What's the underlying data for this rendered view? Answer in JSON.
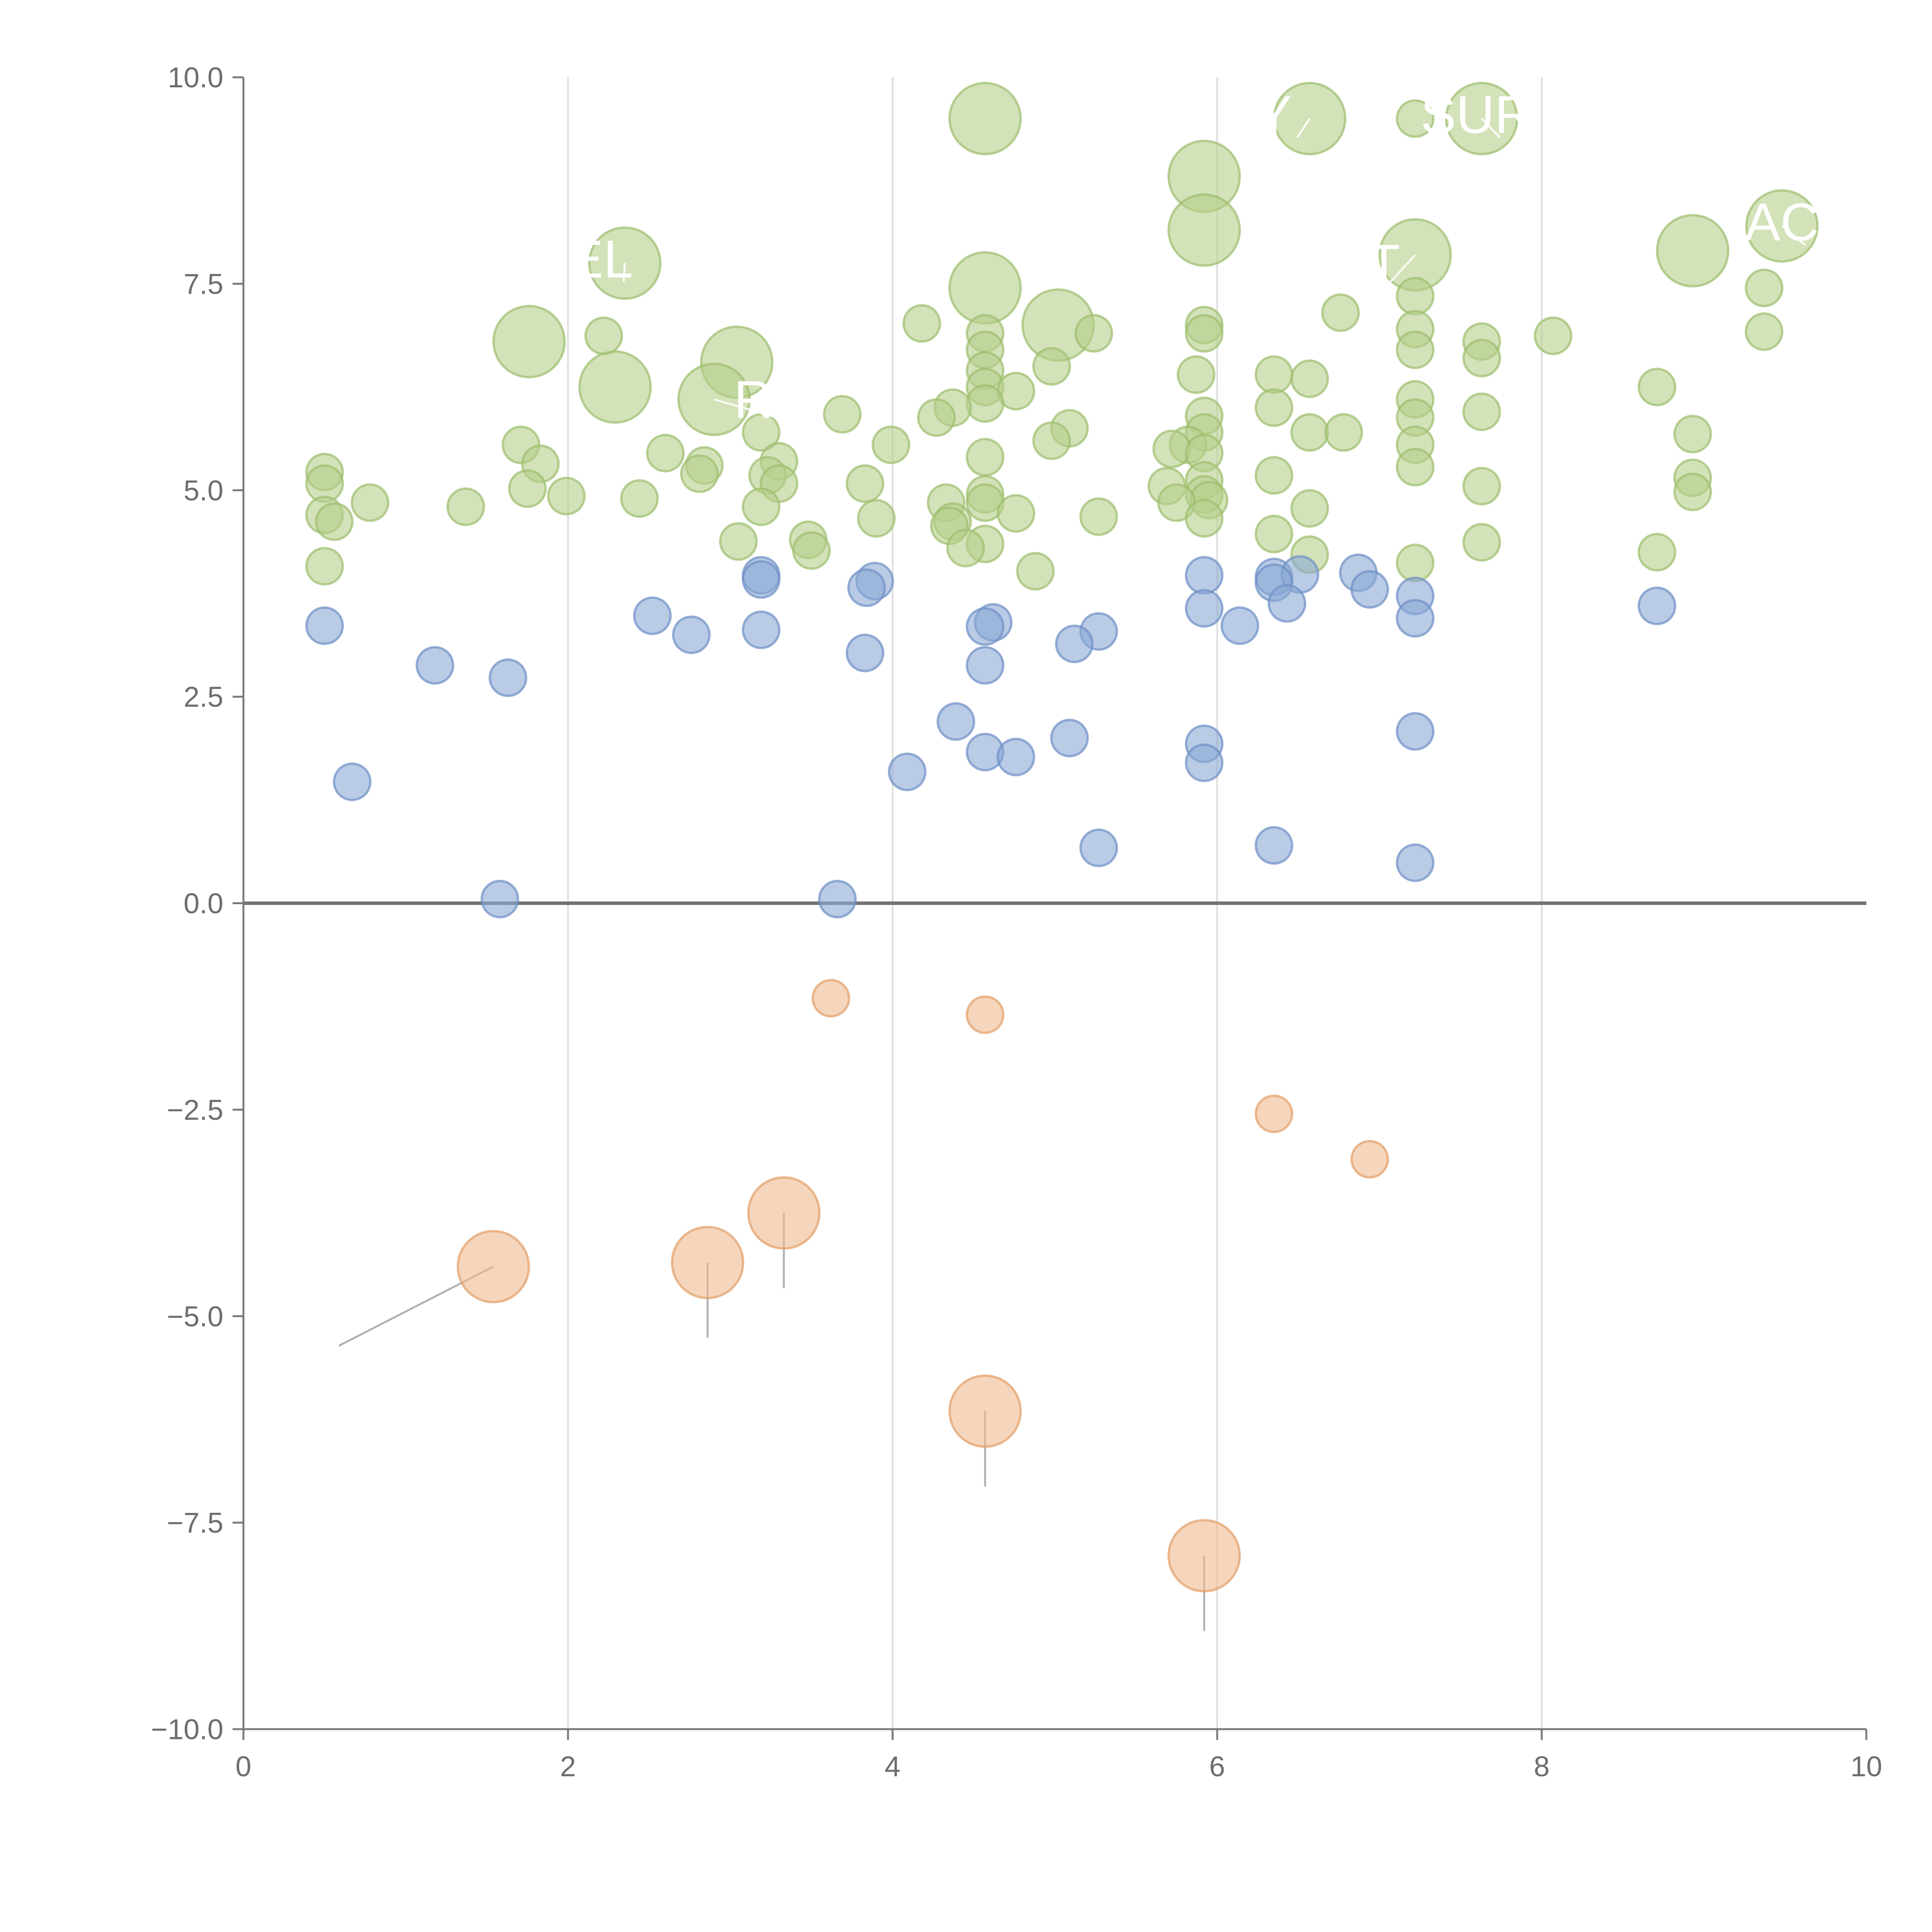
{
  "chart_data": {
    "type": "scatter",
    "title": "",
    "xlabel": "",
    "ylabel": "",
    "xlim": [
      0,
      10
    ],
    "ylim": [
      -10,
      10
    ],
    "x_ticks": [
      0,
      2,
      4,
      6,
      8,
      10
    ],
    "y_ticks": [
      -10.0,
      -7.5,
      -5.0,
      -2.5,
      0.0,
      2.5,
      5.0,
      7.5,
      10.0
    ],
    "x_tick_labels": [
      "0",
      "2",
      "4",
      "6",
      "8",
      "10"
    ],
    "y_tick_labels": [
      "−10.0",
      "−7.5",
      "−5.0",
      "−2.5",
      "0.0",
      "2.5",
      "5.0",
      "7.5",
      "10.0"
    ],
    "x_gridlines": [
      2,
      4,
      6,
      8
    ],
    "reference_line_y": 0,
    "legend": "none",
    "colors": {
      "green_fill": "#b5cf8a",
      "green_stroke": "#9dbd6c",
      "blue_fill": "#8aa8d4",
      "blue_stroke": "#6d8fc6",
      "orange_fill": "#eeb98f",
      "orange_stroke": "#e39e66",
      "leader_line": "#b0b0b0",
      "label_text": "#ffffff"
    },
    "series": [
      {
        "name": "green",
        "points": [
          [
            4.57,
            9.5,
            3
          ],
          [
            6.57,
            9.5,
            3
          ],
          [
            7.22,
            9.5,
            1
          ],
          [
            7.63,
            9.5,
            3
          ],
          [
            5.92,
            8.8,
            3
          ],
          [
            5.92,
            8.15,
            3
          ],
          [
            9.48,
            8.2,
            3
          ],
          [
            8.93,
            7.9,
            3
          ],
          [
            7.22,
            7.85,
            3
          ],
          [
            2.35,
            7.75,
            3
          ],
          [
            4.57,
            7.45,
            3
          ],
          [
            5.02,
            7.0,
            3
          ],
          [
            1.76,
            6.8,
            3
          ],
          [
            3.04,
            6.55,
            3
          ],
          [
            2.29,
            6.25,
            3
          ],
          [
            2.9,
            6.1,
            3
          ],
          [
            7.22,
            7.35,
            1
          ],
          [
            9.37,
            7.45,
            1
          ],
          [
            6.76,
            7.15,
            1
          ],
          [
            4.18,
            7.02,
            1
          ],
          [
            5.92,
            7.0,
            1
          ],
          [
            5.92,
            6.9,
            1
          ],
          [
            7.22,
            6.95,
            1
          ],
          [
            9.37,
            6.92,
            1
          ],
          [
            4.57,
            6.9,
            1
          ],
          [
            5.24,
            6.9,
            1
          ],
          [
            8.07,
            6.87,
            1
          ],
          [
            2.22,
            6.87,
            1
          ],
          [
            7.63,
            6.8,
            1
          ],
          [
            4.57,
            6.7,
            1
          ],
          [
            7.22,
            6.7,
            1
          ],
          [
            7.63,
            6.6,
            1
          ],
          [
            4.57,
            6.45,
            1
          ],
          [
            4.98,
            6.5,
            1
          ],
          [
            5.87,
            6.4,
            1
          ],
          [
            6.35,
            6.4,
            1
          ],
          [
            6.57,
            6.35,
            1
          ],
          [
            4.57,
            6.25,
            1
          ],
          [
            4.76,
            6.2,
            1
          ],
          [
            8.71,
            6.25,
            1
          ],
          [
            7.22,
            6.1,
            1
          ],
          [
            3.69,
            5.92,
            1
          ],
          [
            4.57,
            6.05,
            1
          ],
          [
            4.37,
            6.0,
            1
          ],
          [
            6.35,
            6.0,
            1
          ],
          [
            7.63,
            5.95,
            1
          ],
          [
            5.92,
            5.9,
            1
          ],
          [
            7.22,
            5.88,
            1
          ],
          [
            4.27,
            5.88,
            1
          ],
          [
            5.09,
            5.75,
            1
          ],
          [
            3.19,
            5.7,
            1
          ],
          [
            6.57,
            5.7,
            1
          ],
          [
            6.78,
            5.7,
            1
          ],
          [
            8.93,
            5.68,
            1
          ],
          [
            5.92,
            5.7,
            1
          ],
          [
            4.98,
            5.6,
            1
          ],
          [
            3.99,
            5.55,
            1
          ],
          [
            1.71,
            5.55,
            1
          ],
          [
            7.22,
            5.55,
            1
          ],
          [
            5.82,
            5.55,
            1
          ],
          [
            5.72,
            5.5,
            1
          ],
          [
            2.6,
            5.45,
            1
          ],
          [
            5.92,
            5.45,
            1
          ],
          [
            4.57,
            5.4,
            1
          ],
          [
            3.3,
            5.35,
            1
          ],
          [
            1.83,
            5.32,
            1
          ],
          [
            2.84,
            5.3,
            1
          ],
          [
            7.22,
            5.28,
            1
          ],
          [
            0.5,
            5.22,
            1
          ],
          [
            2.81,
            5.2,
            1
          ],
          [
            6.35,
            5.18,
            1
          ],
          [
            3.23,
            5.18,
            1
          ],
          [
            8.93,
            5.15,
            1
          ],
          [
            5.92,
            5.12,
            1
          ],
          [
            0.5,
            5.08,
            1
          ],
          [
            3.83,
            5.08,
            1
          ],
          [
            3.3,
            5.08,
            1
          ],
          [
            5.69,
            5.05,
            1
          ],
          [
            7.63,
            5.05,
            1
          ],
          [
            1.75,
            5.02,
            1
          ],
          [
            8.93,
            4.98,
            1
          ],
          [
            4.57,
            4.95,
            1
          ],
          [
            5.92,
            4.95,
            1
          ],
          [
            1.99,
            4.93,
            1
          ],
          [
            5.95,
            4.88,
            1
          ],
          [
            5.75,
            4.85,
            1
          ],
          [
            2.44,
            4.9,
            1
          ],
          [
            0.78,
            4.85,
            1
          ],
          [
            4.33,
            4.85,
            1
          ],
          [
            4.57,
            4.85,
            1
          ],
          [
            3.19,
            4.8,
            1
          ],
          [
            1.37,
            4.8,
            1
          ],
          [
            6.57,
            4.78,
            1
          ],
          [
            4.76,
            4.72,
            1
          ],
          [
            0.5,
            4.7,
            1
          ],
          [
            5.27,
            4.68,
            1
          ],
          [
            3.9,
            4.66,
            1
          ],
          [
            5.92,
            4.66,
            1
          ],
          [
            4.37,
            4.62,
            1
          ],
          [
            0.56,
            4.62,
            1
          ],
          [
            4.35,
            4.57,
            1
          ],
          [
            6.35,
            4.47,
            1
          ],
          [
            3.48,
            4.4,
            1
          ],
          [
            3.05,
            4.38,
            1
          ],
          [
            7.63,
            4.37,
            1
          ],
          [
            4.57,
            4.35,
            1
          ],
          [
            4.45,
            4.3,
            1
          ],
          [
            3.5,
            4.27,
            1
          ],
          [
            8.71,
            4.25,
            1
          ],
          [
            6.57,
            4.22,
            1
          ],
          [
            7.22,
            4.12,
            1
          ],
          [
            0.5,
            4.08,
            1
          ],
          [
            4.88,
            4.02,
            1
          ]
        ]
      },
      {
        "name": "blue",
        "points": [
          [
            5.92,
            3.97,
            1
          ],
          [
            3.19,
            3.97,
            1
          ],
          [
            6.35,
            3.95,
            1
          ],
          [
            3.19,
            3.92,
            1
          ],
          [
            6.51,
            3.98,
            1
          ],
          [
            6.87,
            4.0,
            1
          ],
          [
            3.89,
            3.9,
            1
          ],
          [
            6.35,
            3.88,
            1
          ],
          [
            3.84,
            3.82,
            1
          ],
          [
            6.94,
            3.8,
            1
          ],
          [
            7.22,
            3.72,
            1
          ],
          [
            6.43,
            3.63,
            1
          ],
          [
            8.71,
            3.6,
            1
          ],
          [
            5.92,
            3.57,
            1
          ],
          [
            2.52,
            3.48,
            1
          ],
          [
            7.22,
            3.45,
            1
          ],
          [
            4.62,
            3.4,
            1
          ],
          [
            4.57,
            3.35,
            1
          ],
          [
            6.14,
            3.36,
            1
          ],
          [
            0.5,
            3.36,
            1
          ],
          [
            3.19,
            3.31,
            1
          ],
          [
            5.27,
            3.29,
            1
          ],
          [
            2.76,
            3.25,
            1
          ],
          [
            5.12,
            3.14,
            1
          ],
          [
            3.83,
            3.03,
            1
          ],
          [
            1.18,
            2.88,
            1
          ],
          [
            4.57,
            2.88,
            1
          ],
          [
            1.63,
            2.73,
            1
          ],
          [
            4.39,
            2.2,
            1
          ],
          [
            7.22,
            2.08,
            1
          ],
          [
            5.09,
            2.0,
            1
          ],
          [
            5.92,
            1.93,
            1
          ],
          [
            4.57,
            1.83,
            1
          ],
          [
            4.76,
            1.77,
            1
          ],
          [
            5.92,
            1.7,
            1
          ],
          [
            4.09,
            1.59,
            1
          ],
          [
            0.67,
            1.47,
            1
          ],
          [
            6.35,
            0.7,
            1
          ],
          [
            5.27,
            0.67,
            1
          ],
          [
            7.22,
            0.49,
            1
          ],
          [
            1.58,
            0.05,
            1
          ],
          [
            3.66,
            0.05,
            1
          ]
        ]
      },
      {
        "name": "orange",
        "points": [
          [
            3.62,
            -1.15,
            1
          ],
          [
            4.57,
            -1.35,
            1
          ],
          [
            6.35,
            -2.55,
            1
          ],
          [
            6.94,
            -3.1,
            1
          ],
          [
            3.33,
            -3.75,
            3
          ],
          [
            1.54,
            -4.4,
            3
          ],
          [
            2.86,
            -4.35,
            3
          ],
          [
            4.57,
            -6.15,
            3
          ],
          [
            5.92,
            -7.9,
            3
          ]
        ]
      }
    ],
    "annotations": [
      {
        "text": "SUR",
        "x": 7.6,
        "y": 9.55,
        "point_x": 7.63,
        "point_y": 9.5
      },
      {
        "text": "AC",
        "x": 9.48,
        "y": 8.25,
        "point_x": 9.48,
        "point_y": 8.2
      },
      {
        "text": "EL",
        "x": 2.2,
        "y": 7.8,
        "point_x": 2.35,
        "point_y": 7.75
      },
      {
        "text": "OT",
        "x": 6.9,
        "y": 7.75,
        "point_x": 7.22,
        "point_y": 7.85
      },
      {
        "text": "RE",
        "x": 3.25,
        "y": 6.1,
        "point_x": 2.9,
        "point_y": 6.1
      },
      {
        "text": "Y",
        "x": 6.35,
        "y": 9.55,
        "point_x": 6.57,
        "point_y": 9.5
      }
    ]
  }
}
